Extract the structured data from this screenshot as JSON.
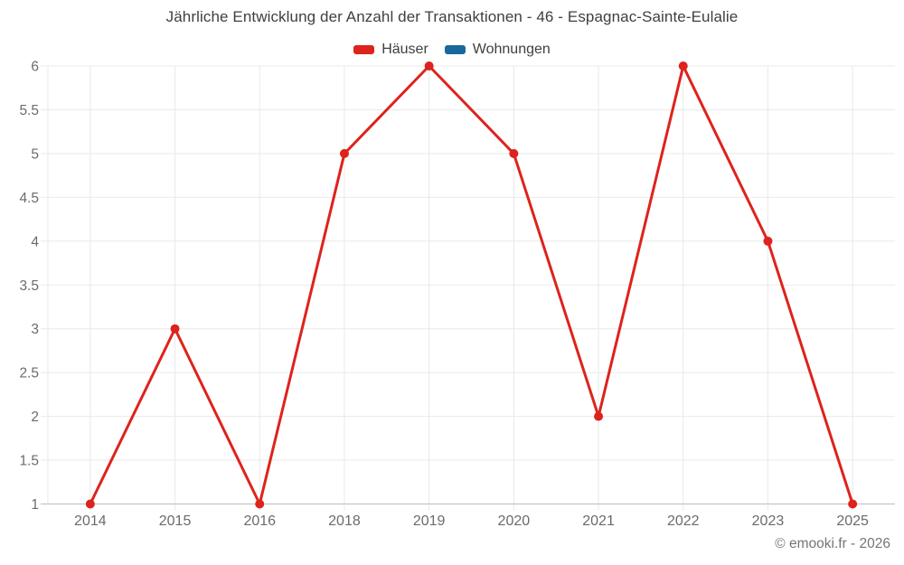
{
  "title": "Jährliche Entwicklung der Anzahl der Transaktionen - 46 - Espagnac-Sainte-Eulalie",
  "footer": "© emooki.fr - 2026",
  "colors": {
    "background": "#ffffff",
    "title_text": "#3f3f3f",
    "tick_label": "#6b6b6b",
    "gridline": "#e9e9e9",
    "axis_line": "#bdbdbd",
    "hauser_red": "#dd231c",
    "wohnungen_blue": "#19689d",
    "footer_text": "#757575"
  },
  "legend": {
    "items": [
      {
        "label": "Häuser",
        "color": "#dd231c"
      },
      {
        "label": "Wohnungen",
        "color": "#19689d"
      }
    ]
  },
  "chart_data": {
    "type": "line",
    "title": "Jährliche Entwicklung der Anzahl der Transaktionen - 46 - Espagnac-Sainte-Eulalie",
    "categories": [
      "2014",
      "2015",
      "2016",
      "2018",
      "2019",
      "2020",
      "2021",
      "2022",
      "2023",
      "2025"
    ],
    "series": [
      {
        "name": "Häuser",
        "color": "#dd231c",
        "values": [
          1,
          3,
          1,
          5,
          6,
          5,
          2,
          6,
          4,
          1
        ]
      },
      {
        "name": "Wohnungen",
        "color": "#19689d",
        "values": []
      }
    ],
    "xlabel": "",
    "ylabel": "",
    "ylim": [
      1,
      6
    ],
    "yticks": [
      1,
      1.5,
      2,
      2.5,
      3,
      3.5,
      4,
      4.5,
      5,
      5.5,
      6
    ],
    "grid": true,
    "legend_position": "top",
    "marker": "circle",
    "marker_radius": 5,
    "line_width": 3
  }
}
